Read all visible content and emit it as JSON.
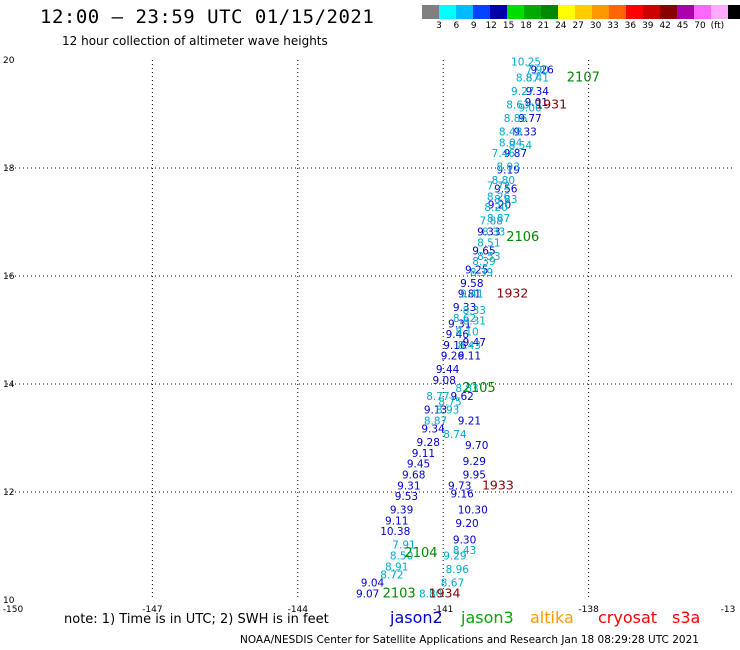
{
  "header": {
    "title": "12:00 – 23:59 UTC 01/15/2021",
    "subtitle": "12 hour collection of altimeter wave heights"
  },
  "color_scale": {
    "colors": [
      "#808080",
      "#00ffff",
      "#00bbff",
      "#0044ff",
      "#0000aa",
      "#00dd00",
      "#00aa00",
      "#008800",
      "#ffff00",
      "#ffcc00",
      "#ff9900",
      "#ff6600",
      "#ff0000",
      "#cc0000",
      "#880000",
      "#aa00aa",
      "#ff66ff",
      "#ffaaff",
      "#000000"
    ],
    "labels": [
      "3",
      "6",
      "9",
      "12",
      "15",
      "18",
      "21",
      "24",
      "27",
      "30",
      "33",
      "36",
      "39",
      "42",
      "45",
      "70",
      "(ft)"
    ]
  },
  "axes": {
    "x_ticks": [
      "-150",
      "-147",
      "-144",
      "-141",
      "-138",
      "-13"
    ],
    "y_ticks": [
      "20",
      "18",
      "16",
      "14",
      "12",
      "10"
    ]
  },
  "colors": {
    "jason2": "#0000cc",
    "jason3": "#00aacc",
    "altika": "#008800",
    "cryosat": "#880000",
    "s3a": "#ff0000"
  },
  "track_jason2": [
    {
      "lon": -139.2,
      "lat": 19.75,
      "v": "9.26"
    },
    {
      "lon": -139.3,
      "lat": 19.35,
      "v": "9.34"
    },
    {
      "lon": -139.32,
      "lat": 19.15,
      "v": "9.01"
    },
    {
      "lon": -139.45,
      "lat": 18.85,
      "v": "9.77"
    },
    {
      "lon": -139.55,
      "lat": 18.6,
      "v": "9.33"
    },
    {
      "lon": -139.75,
      "lat": 18.2,
      "v": "9.87"
    },
    {
      "lon": -139.9,
      "lat": 17.9,
      "v": "9.19"
    },
    {
      "lon": -139.95,
      "lat": 17.55,
      "v": "9.56"
    },
    {
      "lon": -140.08,
      "lat": 17.25,
      "v": "9.20"
    },
    {
      "lon": -140.3,
      "lat": 16.75,
      "v": "9.33"
    },
    {
      "lon": -140.4,
      "lat": 16.4,
      "v": "9.65"
    },
    {
      "lon": -140.55,
      "lat": 16.05,
      "v": "9.25"
    },
    {
      "lon": -140.65,
      "lat": 15.8,
      "v": "9.58"
    },
    {
      "lon": -140.7,
      "lat": 15.6,
      "v": "9.81"
    },
    {
      "lon": -140.8,
      "lat": 15.35,
      "v": "9.33"
    },
    {
      "lon": -140.9,
      "lat": 15.05,
      "v": "9.31"
    },
    {
      "lon": -140.95,
      "lat": 14.85,
      "v": "9.46"
    },
    {
      "lon": -141.0,
      "lat": 14.65,
      "v": "9.16"
    },
    {
      "lon": -141.05,
      "lat": 14.45,
      "v": "9.26"
    },
    {
      "lon": -141.15,
      "lat": 14.2,
      "v": "9.44"
    },
    {
      "lon": -141.22,
      "lat": 14.0,
      "v": "9.08"
    },
    {
      "lon": -141.4,
      "lat": 13.45,
      "v": "9.13"
    },
    {
      "lon": -141.45,
      "lat": 13.1,
      "v": "9.34"
    },
    {
      "lon": -141.55,
      "lat": 12.85,
      "v": "9.28"
    },
    {
      "lon": -141.65,
      "lat": 12.65,
      "v": "9.11"
    },
    {
      "lon": -141.75,
      "lat": 12.45,
      "v": "9.45"
    },
    {
      "lon": -141.85,
      "lat": 12.25,
      "v": "9.68"
    },
    {
      "lon": -141.95,
      "lat": 12.05,
      "v": "9.31"
    },
    {
      "lon": -142.0,
      "lat": 11.85,
      "v": "9.53"
    },
    {
      "lon": -142.1,
      "lat": 11.6,
      "v": "9.39"
    },
    {
      "lon": -142.2,
      "lat": 11.4,
      "v": "9.11"
    },
    {
      "lon": -142.3,
      "lat": 11.2,
      "v": "10.38"
    },
    {
      "lon": -142.7,
      "lat": 10.25,
      "v": "9.04"
    },
    {
      "lon": -142.8,
      "lat": 10.05,
      "v": "9.07"
    },
    {
      "lon": -140.9,
      "lat": 12.05,
      "v": "9.73"
    },
    {
      "lon": -140.85,
      "lat": 11.9,
      "v": "9.16"
    },
    {
      "lon": -140.7,
      "lat": 11.6,
      "v": "10.30"
    },
    {
      "lon": -140.75,
      "lat": 11.35,
      "v": "9.20"
    },
    {
      "lon": -140.8,
      "lat": 11.05,
      "v": "9.30"
    },
    {
      "lon": -140.6,
      "lat": 12.25,
      "v": "9.95"
    },
    {
      "lon": -140.6,
      "lat": 12.5,
      "v": "9.29"
    },
    {
      "lon": -140.55,
      "lat": 12.8,
      "v": "9.70"
    },
    {
      "lon": -140.7,
      "lat": 13.25,
      "v": "9.21"
    },
    {
      "lon": -140.85,
      "lat": 13.7,
      "v": "9.62"
    },
    {
      "lon": -140.7,
      "lat": 14.45,
      "v": "9.11"
    },
    {
      "lon": -140.6,
      "lat": 14.7,
      "v": "9.47"
    }
  ],
  "track_jason3": [
    {
      "lon": -139.6,
      "lat": 19.9,
      "v": "10.25"
    },
    {
      "lon": -139.3,
      "lat": 19.75,
      "v": "7.90"
    },
    {
      "lon": -139.5,
      "lat": 19.6,
      "v": "8.87"
    },
    {
      "lon": -139.3,
      "lat": 19.6,
      "v": "8.41"
    },
    {
      "lon": -139.6,
      "lat": 19.35,
      "v": "9.27"
    },
    {
      "lon": -139.7,
      "lat": 19.1,
      "v": "8.63"
    },
    {
      "lon": -139.45,
      "lat": 19.05,
      "v": "9.00"
    },
    {
      "lon": -139.75,
      "lat": 18.85,
      "v": "8.86"
    },
    {
      "lon": -139.85,
      "lat": 18.6,
      "v": "8.48"
    },
    {
      "lon": -139.85,
      "lat": 18.4,
      "v": "8.04"
    },
    {
      "lon": -139.65,
      "lat": 18.35,
      "v": "8.54"
    },
    {
      "lon": -140.0,
      "lat": 18.2,
      "v": "7.46"
    },
    {
      "lon": -139.9,
      "lat": 17.95,
      "v": "8.93"
    },
    {
      "lon": -140.0,
      "lat": 17.7,
      "v": "8.80"
    },
    {
      "lon": -140.1,
      "lat": 17.6,
      "v": "7.72"
    },
    {
      "lon": -140.1,
      "lat": 17.4,
      "v": "8.26"
    },
    {
      "lon": -139.95,
      "lat": 17.35,
      "v": "8.83"
    },
    {
      "lon": -140.15,
      "lat": 17.2,
      "v": "8.20"
    },
    {
      "lon": -140.1,
      "lat": 17.0,
      "v": "8.87"
    },
    {
      "lon": -140.25,
      "lat": 16.95,
      "v": "7.88"
    },
    {
      "lon": -140.2,
      "lat": 16.75,
      "v": "8.33"
    },
    {
      "lon": -140.3,
      "lat": 16.55,
      "v": "8.51"
    },
    {
      "lon": -140.3,
      "lat": 16.3,
      "v": "8.53"
    },
    {
      "lon": -140.4,
      "lat": 16.2,
      "v": "8.39"
    },
    {
      "lon": -140.45,
      "lat": 16.0,
      "v": "8.39"
    },
    {
      "lon": -140.65,
      "lat": 15.6,
      "v": "9.41"
    },
    {
      "lon": -140.6,
      "lat": 15.3,
      "v": "8.33"
    },
    {
      "lon": -140.8,
      "lat": 15.15,
      "v": "8.62"
    },
    {
      "lon": -140.6,
      "lat": 15.1,
      "v": "8.31"
    },
    {
      "lon": -140.75,
      "lat": 14.9,
      "v": "8.10"
    },
    {
      "lon": -140.7,
      "lat": 14.65,
      "v": "8.43"
    },
    {
      "lon": -140.75,
      "lat": 13.85,
      "v": "8.83"
    },
    {
      "lon": -141.35,
      "lat": 13.7,
      "v": "8.77"
    },
    {
      "lon": -141.1,
      "lat": 13.6,
      "v": "8.75"
    },
    {
      "lon": -141.15,
      "lat": 13.45,
      "v": "8.93"
    },
    {
      "lon": -141.4,
      "lat": 13.25,
      "v": "8.87"
    },
    {
      "lon": -141.0,
      "lat": 13.0,
      "v": "8.74"
    },
    {
      "lon": -142.05,
      "lat": 10.95,
      "v": "7.91"
    },
    {
      "lon": -140.8,
      "lat": 10.85,
      "v": "8.43"
    },
    {
      "lon": -142.1,
      "lat": 10.75,
      "v": "8.50"
    },
    {
      "lon": -141.0,
      "lat": 10.75,
      "v": "9.29"
    },
    {
      "lon": -142.2,
      "lat": 10.55,
      "v": "8.91"
    },
    {
      "lon": -140.95,
      "lat": 10.5,
      "v": "8.96"
    },
    {
      "lon": -142.3,
      "lat": 10.4,
      "v": "8.72"
    },
    {
      "lon": -141.05,
      "lat": 10.25,
      "v": "8.67"
    },
    {
      "lon": -141.5,
      "lat": 10.05,
      "v": "8.80"
    }
  ],
  "track_altika": [
    {
      "lon": -138.45,
      "lat": 19.6,
      "v": "2107"
    },
    {
      "lon": -139.7,
      "lat": 16.65,
      "v": "2106"
    },
    {
      "lon": -140.6,
      "lat": 13.85,
      "v": "2105"
    },
    {
      "lon": -141.8,
      "lat": 10.8,
      "v": "2104"
    },
    {
      "lon": -142.25,
      "lat": 10.05,
      "v": "2103"
    }
  ],
  "track_cryosat": [
    {
      "lon": -139.1,
      "lat": 19.1,
      "v": "1931"
    },
    {
      "lon": -139.9,
      "lat": 15.6,
      "v": "1932"
    },
    {
      "lon": -140.2,
      "lat": 12.05,
      "v": "1933"
    },
    {
      "lon": -141.3,
      "lat": 10.05,
      "v": "1934"
    }
  ],
  "note": "note:  1) Time is in UTC;  2) SWH is in feet",
  "legend": {
    "jason2": "jason2",
    "jason3": "jason3",
    "altika": "altika",
    "cryosat": "cryosat",
    "s3a": "s3a"
  },
  "footer": "NOAA/NESDIS Center for Satellite Applications and Research    Jan 18 08:29:28 UTC 2021"
}
